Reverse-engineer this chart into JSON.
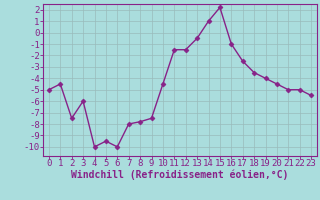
{
  "x": [
    0,
    1,
    2,
    3,
    4,
    5,
    6,
    7,
    8,
    9,
    10,
    11,
    12,
    13,
    14,
    15,
    16,
    17,
    18,
    19,
    20,
    21,
    22,
    23
  ],
  "y": [
    -5.0,
    -4.5,
    -7.5,
    -6.0,
    -10.0,
    -9.5,
    -10.0,
    -8.0,
    -7.8,
    -7.5,
    -4.5,
    -1.5,
    -1.5,
    -0.5,
    1.0,
    2.2,
    -1.0,
    -2.5,
    -3.5,
    -4.0,
    -4.5,
    -5.0,
    -5.0,
    -5.5
  ],
  "line_color": "#882288",
  "marker": "D",
  "marker_size": 2.5,
  "bg_color": "#aadddd",
  "grid_color": "#99bbbb",
  "xlabel": "Windchill (Refroidissement éolien,°C)",
  "xlim": [
    -0.5,
    23.5
  ],
  "ylim": [
    -10.8,
    2.5
  ],
  "yticks": [
    2,
    1,
    0,
    -1,
    -2,
    -3,
    -4,
    -5,
    -6,
    -7,
    -8,
    -9,
    -10
  ],
  "xticks": [
    0,
    1,
    2,
    3,
    4,
    5,
    6,
    7,
    8,
    9,
    10,
    11,
    12,
    13,
    14,
    15,
    16,
    17,
    18,
    19,
    20,
    21,
    22,
    23
  ],
  "tick_color": "#882288",
  "label_color": "#882288",
  "font_size": 6.5,
  "xlabel_fontsize": 7,
  "lw": 1.0
}
